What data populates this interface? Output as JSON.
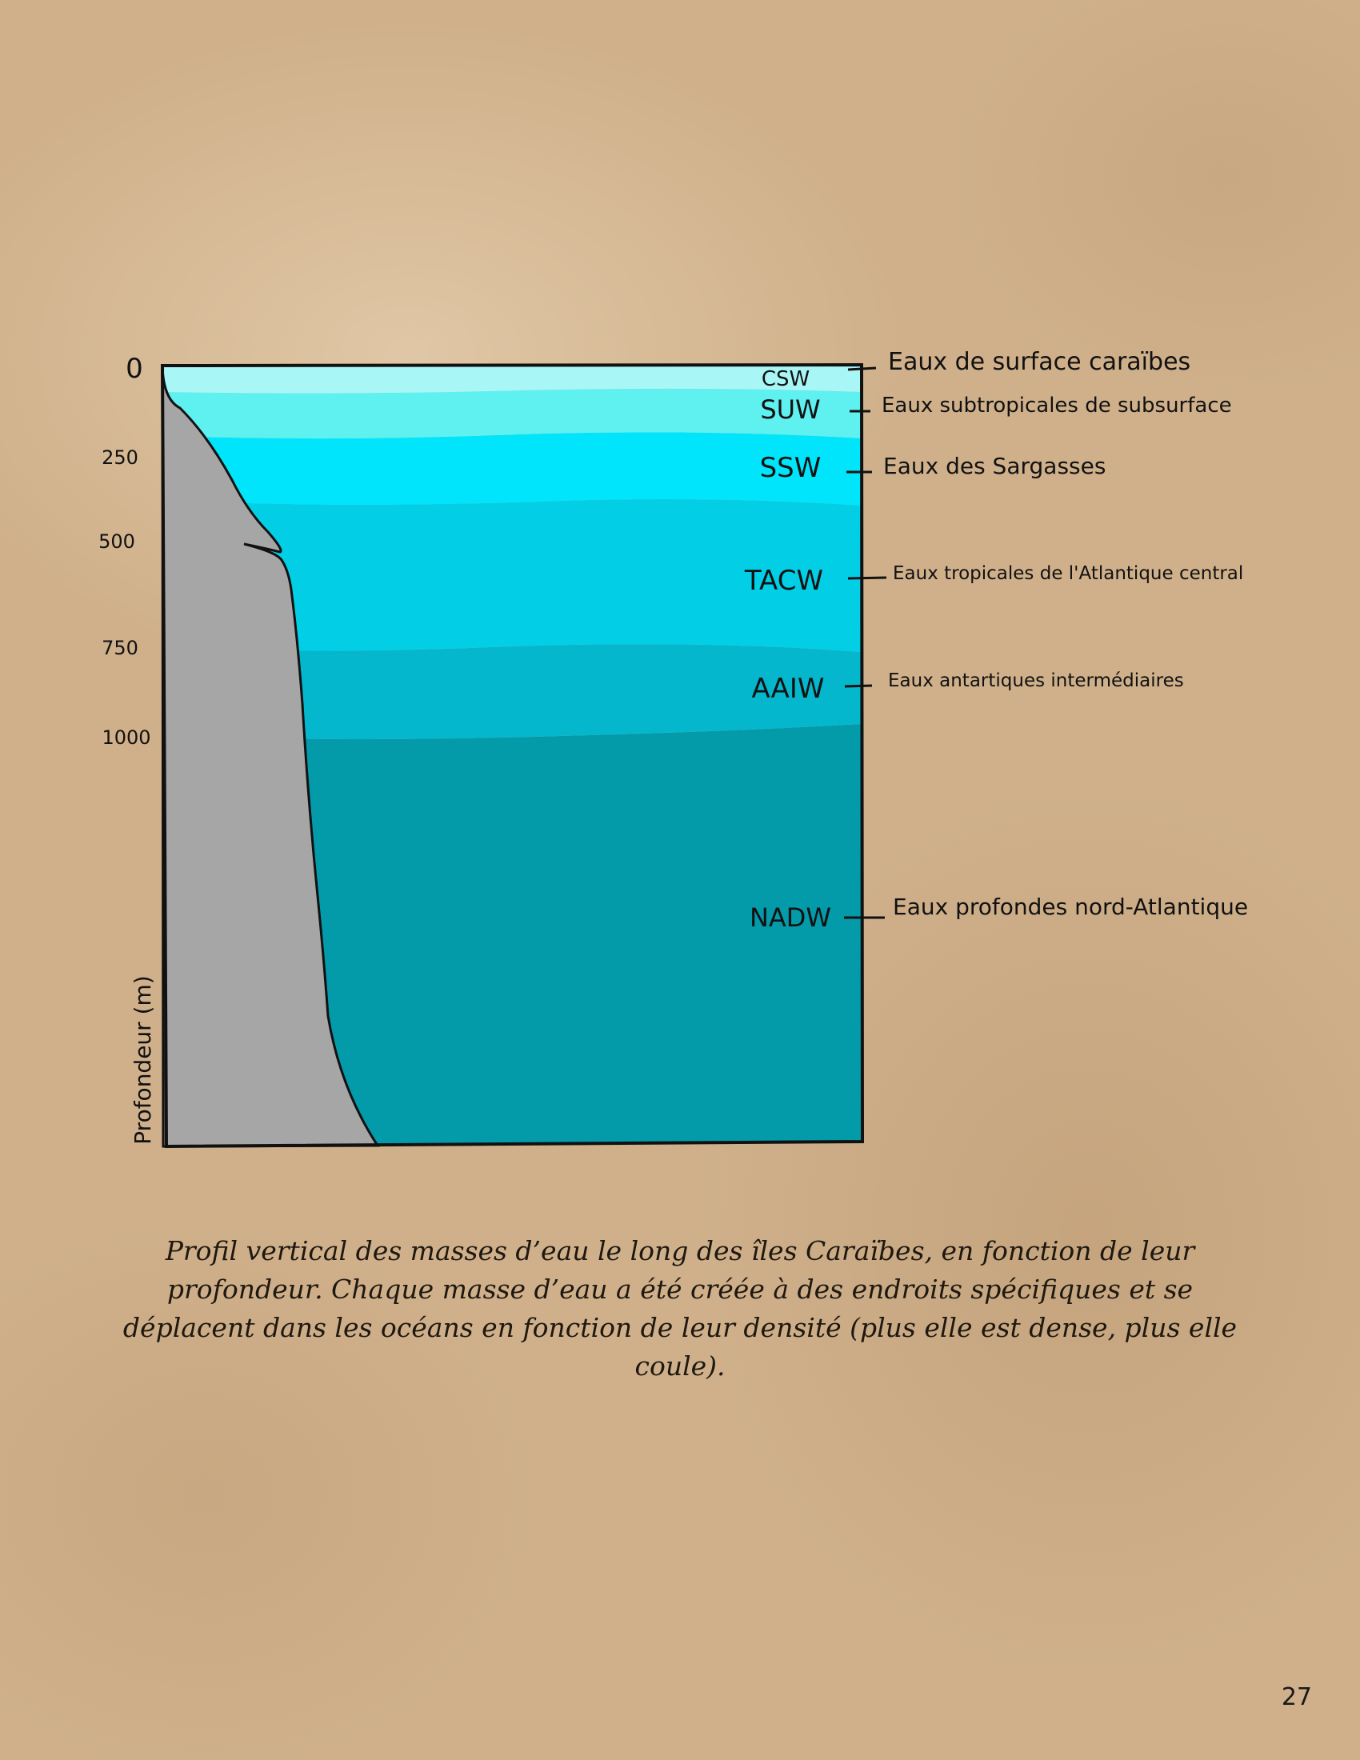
{
  "depth_axis": {
    "label": "Profondeur (m)",
    "ticks": [
      "0",
      "250",
      "500",
      "750",
      "1000"
    ]
  },
  "water_masses": [
    {
      "code": "CSW",
      "name": "Eaux de surface caraïbes",
      "color": "#a9f6f7"
    },
    {
      "code": "SUW",
      "name": "Eaux subtropicales de subsurface",
      "color": "#5ff0f0"
    },
    {
      "code": "SSW",
      "name": "Eaux des Sargasses",
      "color": "#00e5fb"
    },
    {
      "code": "TACW",
      "name": "Eaux tropicales de l'Atlantique central",
      "color": "#02cfe6"
    },
    {
      "code": "AAIW",
      "name": "Eaux antartiques intermédiaires",
      "color": "#04b7cc"
    },
    {
      "code": "NADW",
      "name": "Eaux profondes nord-Atlantique",
      "color": "#039aaa"
    }
  ],
  "seafloor_color": "#a6a6a6",
  "caption": "Profil vertical des masses d’eau le long des îles Caraïbes, en fonction de leur profondeur. Chaque masse d’eau a été créée à des endroits spécifiques et se déplacent dans les océans en fonction de leur densité (plus elle est dense, plus elle coule).",
  "page_number": "27"
}
